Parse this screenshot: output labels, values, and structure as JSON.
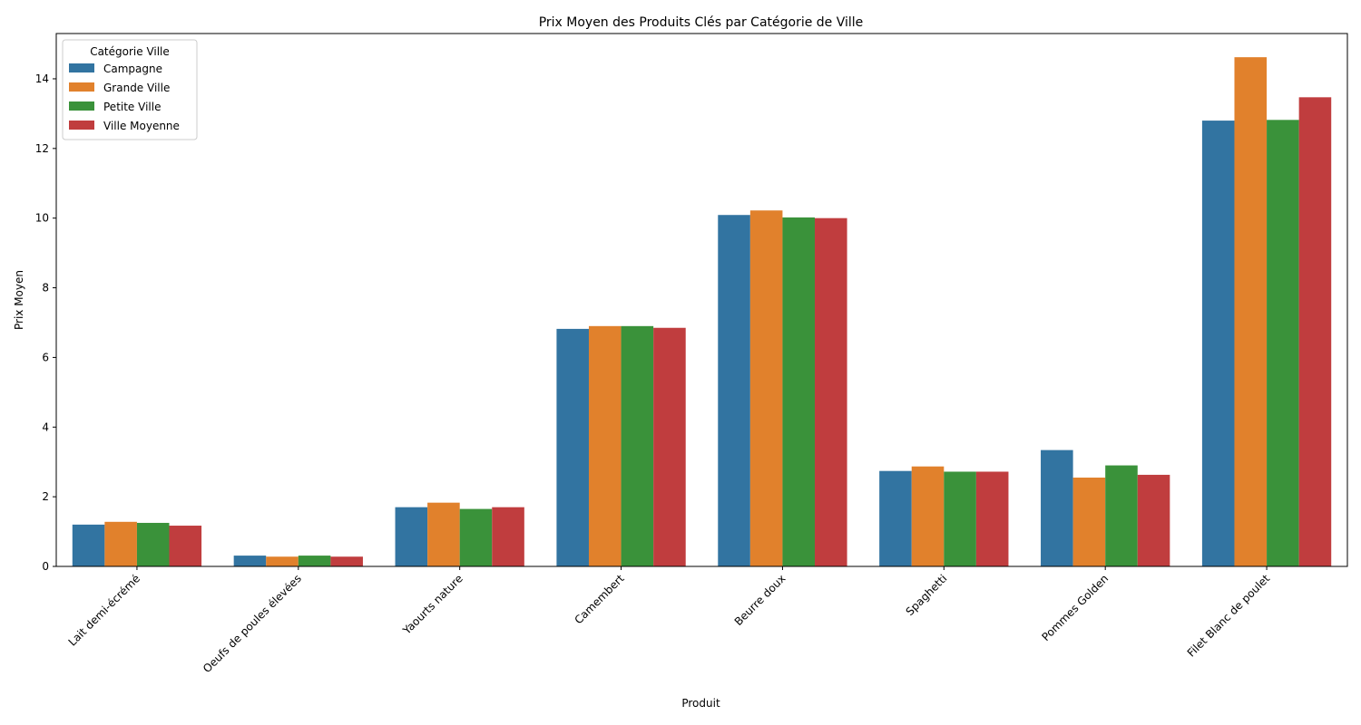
{
  "chart_data": {
    "type": "bar",
    "title": "Prix Moyen des Produits Clés par Catégorie de Ville",
    "xlabel": "Produit",
    "ylabel": "Prix Moyen",
    "ylim": [
      0,
      15.3
    ],
    "yticks": [
      0,
      2,
      4,
      6,
      8,
      10,
      12,
      14
    ],
    "grid": false,
    "legend": {
      "title": "Catégorie Ville",
      "placement": "top-left"
    },
    "categories": [
      "Lait demi-écrémé",
      "Oeufs de poules élevées",
      "Yaourts nature",
      "Camembert",
      "Beurre doux",
      "Spaghetti",
      "Pommes Golden",
      "Filet Blanc de poulet"
    ],
    "series": [
      {
        "name": "Campagne",
        "color": "#3274a1",
        "values": [
          1.2,
          0.31,
          1.7,
          6.82,
          10.09,
          2.74,
          3.34,
          12.8
        ]
      },
      {
        "name": "Grande Ville",
        "color": "#e1812c",
        "values": [
          1.28,
          0.28,
          1.83,
          6.9,
          10.22,
          2.87,
          2.55,
          14.62
        ]
      },
      {
        "name": "Petite Ville",
        "color": "#3a923a",
        "values": [
          1.25,
          0.31,
          1.65,
          6.9,
          10.02,
          2.72,
          2.9,
          12.82
        ]
      },
      {
        "name": "Ville Moyenne",
        "color": "#c03d3e",
        "values": [
          1.17,
          0.28,
          1.7,
          6.85,
          10.0,
          2.72,
          2.63,
          13.47
        ]
      }
    ]
  }
}
